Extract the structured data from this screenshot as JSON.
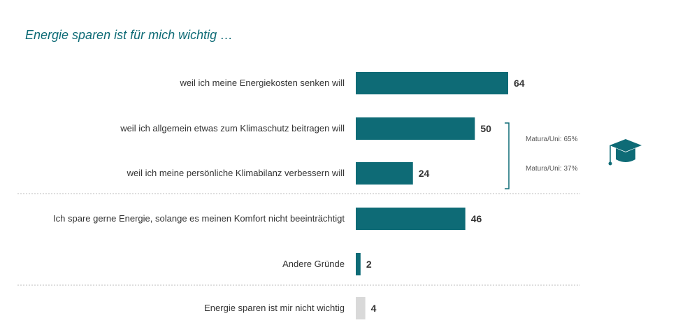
{
  "title": "Energie sparen ist für mich wichtig …",
  "chart_data": {
    "type": "bar",
    "orientation": "horizontal",
    "title": "Energie sparen ist für mich wichtig …",
    "categories": [
      "weil ich meine Energiekosten senken will",
      "weil ich allgemein etwas zum Klimaschutz beitragen will",
      "weil ich meine persönliche Klimabilanz verbessern will",
      "Ich spare gerne Energie, solange es meinen Komfort nicht beeinträchtigt",
      "Andere Gründe",
      "Energie sparen ist mir nicht wichtig"
    ],
    "values": [
      64,
      50,
      24,
      46,
      2,
      4
    ],
    "colors": [
      "#0e6b76",
      "#0e6b76",
      "#0e6b76",
      "#0e6b76",
      "#0e6b76",
      "#d9d9d9"
    ],
    "xlim": [
      0,
      100
    ],
    "grid": false,
    "annotations": [
      "Matura/Uni: 65%",
      "Matura/Uni: 37%"
    ],
    "annotation_icon": "graduation-cap-icon"
  }
}
